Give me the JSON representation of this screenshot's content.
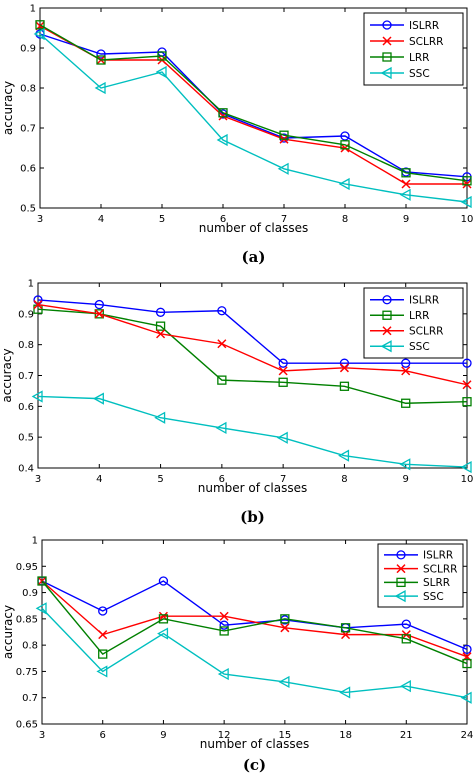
{
  "chart_data": [
    {
      "type": "line",
      "caption": "(a)",
      "x": [
        3,
        4,
        5,
        6,
        7,
        8,
        9,
        10
      ],
      "xticks": [
        "3",
        "4",
        "5",
        "6",
        "7",
        "8",
        "9",
        "10"
      ],
      "yticks": [
        "0.5",
        "0.6",
        "0.7",
        "0.8",
        "0.9",
        "1"
      ],
      "xlim": [
        3,
        10
      ],
      "ylim": [
        0.5,
        1.0
      ],
      "xlabel": "number of classes",
      "ylabel": "accuracy",
      "legend_position": "top-right",
      "series": [
        {
          "name": "ISLRR",
          "color": "#0000ff",
          "marker": "circle",
          "values": [
            0.935,
            0.885,
            0.89,
            0.735,
            0.675,
            0.68,
            0.59,
            0.578
          ]
        },
        {
          "name": "SCLRR",
          "color": "#ff0000",
          "marker": "x",
          "values": [
            0.955,
            0.87,
            0.87,
            0.73,
            0.672,
            0.65,
            0.56,
            0.56
          ]
        },
        {
          "name": "LRR",
          "color": "#008000",
          "marker": "square",
          "values": [
            0.958,
            0.87,
            0.88,
            0.738,
            0.682,
            0.658,
            0.588,
            0.568
          ]
        },
        {
          "name": "SSC",
          "color": "#00bfbf",
          "marker": "triangle",
          "values": [
            0.935,
            0.8,
            0.84,
            0.67,
            0.598,
            0.56,
            0.533,
            0.515
          ]
        }
      ]
    },
    {
      "type": "line",
      "caption": "(b)",
      "x": [
        3,
        4,
        5,
        6,
        7,
        8,
        9,
        10
      ],
      "xticks": [
        "3",
        "4",
        "5",
        "6",
        "7",
        "8",
        "9",
        "10"
      ],
      "yticks": [
        "0.4",
        "0.5",
        "0.6",
        "0.7",
        "0.8",
        "0.9",
        "1"
      ],
      "xlim": [
        3,
        10
      ],
      "ylim": [
        0.4,
        1.0
      ],
      "xlabel": "number of classes",
      "ylabel": "accuracy",
      "legend_position": "top-right",
      "series": [
        {
          "name": "ISLRR",
          "color": "#0000ff",
          "marker": "circle",
          "values": [
            0.945,
            0.93,
            0.905,
            0.91,
            0.74,
            0.74,
            0.74,
            0.74
          ]
        },
        {
          "name": "LRR",
          "color": "#008000",
          "marker": "square",
          "values": [
            0.915,
            0.9,
            0.86,
            0.685,
            0.678,
            0.665,
            0.61,
            0.615
          ]
        },
        {
          "name": "SCLRR",
          "color": "#ff0000",
          "marker": "x",
          "values": [
            0.93,
            0.9,
            0.835,
            0.803,
            0.715,
            0.725,
            0.715,
            0.67
          ]
        },
        {
          "name": "SSC",
          "color": "#00bfbf",
          "marker": "triangle",
          "values": [
            0.632,
            0.625,
            0.563,
            0.53,
            0.498,
            0.44,
            0.412,
            0.403
          ]
        }
      ]
    },
    {
      "type": "line",
      "caption": "(c)",
      "x": [
        3,
        6,
        9,
        12,
        15,
        18,
        21,
        24
      ],
      "xticks": [
        "3",
        "6",
        "9",
        "12",
        "15",
        "18",
        "21",
        "24"
      ],
      "yticks": [
        "0.65",
        "0.7",
        "0.75",
        "0.8",
        "0.85",
        "0.9",
        "0.95",
        "1"
      ],
      "xlim": [
        3,
        24
      ],
      "ylim": [
        0.65,
        1.0
      ],
      "xlabel": "number of classes",
      "ylabel": "accuracy",
      "legend_position": "top-right",
      "series": [
        {
          "name": "ISLRR",
          "color": "#0000ff",
          "marker": "circle",
          "values": [
            0.922,
            0.865,
            0.922,
            0.838,
            0.848,
            0.833,
            0.84,
            0.792
          ]
        },
        {
          "name": "SCLRR",
          "color": "#ff0000",
          "marker": "x",
          "values": [
            0.922,
            0.82,
            0.855,
            0.855,
            0.833,
            0.82,
            0.82,
            0.778
          ]
        },
        {
          "name": "SLRR",
          "color": "#008000",
          "marker": "square",
          "values": [
            0.922,
            0.783,
            0.85,
            0.827,
            0.85,
            0.833,
            0.812,
            0.765
          ]
        },
        {
          "name": "SSC",
          "color": "#00bfbf",
          "marker": "triangle",
          "values": [
            0.87,
            0.75,
            0.822,
            0.745,
            0.73,
            0.71,
            0.722,
            0.7
          ]
        }
      ]
    }
  ]
}
